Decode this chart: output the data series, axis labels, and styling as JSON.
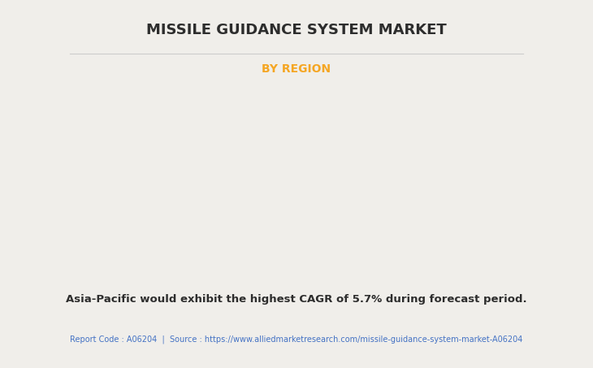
{
  "title": "MISSILE GUIDANCE SYSTEM MARKET",
  "subtitle": "BY REGION",
  "subtitle_color": "#F5A623",
  "title_color": "#2d2d2d",
  "background_color": "#f0eeea",
  "annotation": "Asia-Pacific would exhibit the highest CAGR of 5.7% during forecast period.",
  "footer": "Report Code : A06204  |  Source : https://www.alliedmarketresearch.com/missile-guidance-system-market-A06204",
  "footer_color": "#4472C4",
  "annotation_color": "#2d2d2d",
  "map_colors": {
    "north_america": "#7ab87a",
    "europe": "#7ab87a",
    "asia_pacific": "#c8d45a",
    "middle_east_africa": "#9bc49b",
    "latin_america": "#c8d45a",
    "usa": "#e8e8e8",
    "shadow": "#a0a0a0"
  },
  "divider_color": "#cccccc",
  "figsize": [
    7.3,
    4.53
  ],
  "dpi": 100
}
